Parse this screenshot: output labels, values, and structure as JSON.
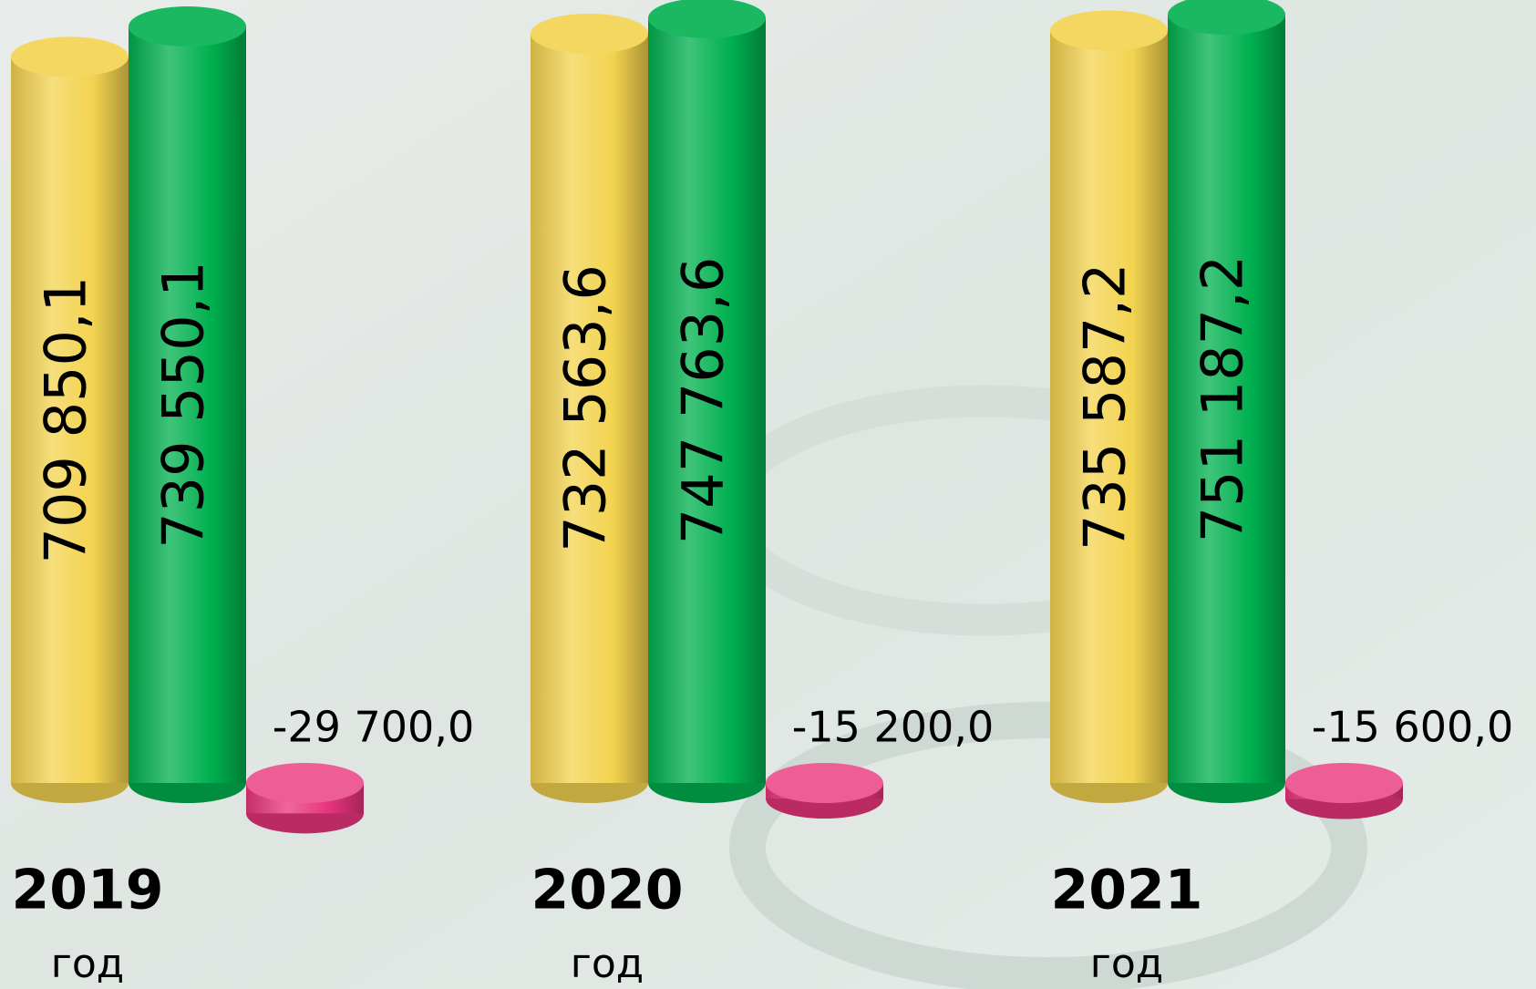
{
  "chart_data": {
    "type": "bar3d",
    "categories": [
      "2019",
      "2020",
      "2021"
    ],
    "category_sublabels": [
      "год",
      "год",
      "год"
    ],
    "series": [
      {
        "color": "#f3d34f",
        "values": [
          709850.1,
          732563.6,
          735587.2
        ],
        "value_labels": [
          "709 850,1",
          "732 563,6",
          "735 587,2"
        ]
      },
      {
        "color": "#00b04f",
        "values": [
          739550.1,
          747763.6,
          751187.2
        ],
        "value_labels": [
          "739 550,1",
          "747 763,6",
          "751 187,2"
        ]
      },
      {
        "color": "#e8357c",
        "values": [
          -29700.0,
          -15200.0,
          -15600.0
        ],
        "value_labels": [
          "-29 700,0",
          "-15 200,0",
          "-15 600,0"
        ]
      }
    ]
  }
}
